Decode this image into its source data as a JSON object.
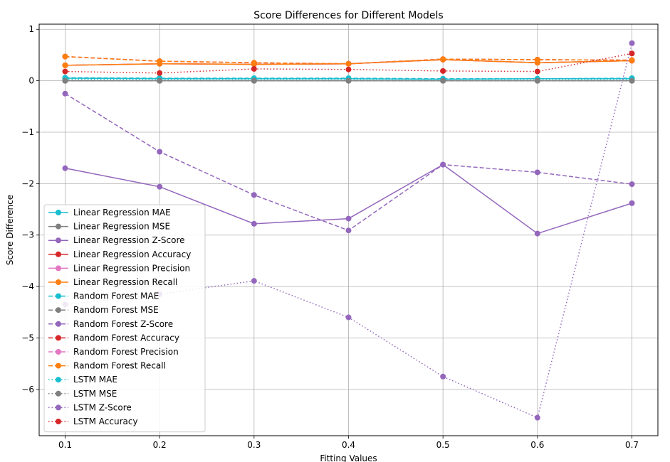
{
  "chart_data": {
    "type": "line",
    "title": "Score Differences for Different Models",
    "xlabel": "Fitting Values",
    "ylabel": "Score Difference",
    "x": [
      0.1,
      0.2,
      0.3,
      0.4,
      0.5,
      0.6,
      0.7
    ],
    "xticks": [
      "0.1",
      "0.2",
      "0.3",
      "0.4",
      "0.5",
      "0.6",
      "0.7"
    ],
    "yticks": [
      "1",
      "0",
      "−1",
      "−2",
      "−3",
      "−4",
      "−5",
      "−6"
    ],
    "ytick_values": [
      1,
      0,
      -1,
      -2,
      -3,
      -4,
      -5,
      -6
    ],
    "xlim": [
      0.0725,
      0.7275
    ],
    "ylim": [
      -6.9,
      1.1
    ],
    "grid": true,
    "legend_position": "lower-left",
    "series": [
      {
        "name": "Linear Regression MAE",
        "color": "#17becf",
        "style": "solid",
        "values": [
          0.05,
          0.04,
          0.04,
          0.04,
          0.03,
          0.04,
          0.04
        ]
      },
      {
        "name": "Linear Regression MSE",
        "color": "#7f7f7f",
        "style": "solid",
        "values": [
          0.0,
          0.0,
          0.0,
          0.0,
          0.0,
          0.0,
          0.0
        ]
      },
      {
        "name": "Linear Regression Z-Score",
        "color": "#9467bd",
        "style": "solid",
        "values": [
          -1.7,
          -2.06,
          -2.78,
          -2.68,
          -1.63,
          -2.97,
          -2.38
        ]
      },
      {
        "name": "Linear Regression Accuracy",
        "color": "#d62728",
        "style": "solid",
        "values": [
          0.3,
          0.33,
          0.32,
          0.33,
          0.41,
          0.35,
          0.39
        ]
      },
      {
        "name": "Linear Regression Precision",
        "color": "#e377c2",
        "style": "solid",
        "values": [
          0.3,
          0.33,
          0.32,
          0.33,
          0.41,
          0.35,
          0.39
        ]
      },
      {
        "name": "Linear Regression Recall",
        "color": "#ff7f0e",
        "style": "solid",
        "values": [
          0.3,
          0.33,
          0.32,
          0.33,
          0.41,
          0.35,
          0.39
        ]
      },
      {
        "name": "Random Forest MAE",
        "color": "#17becf",
        "style": "dashed",
        "values": [
          0.06,
          0.05,
          0.05,
          0.05,
          0.04,
          0.04,
          0.05
        ]
      },
      {
        "name": "Random Forest MSE",
        "color": "#7f7f7f",
        "style": "dashed",
        "values": [
          0.0,
          0.0,
          0.0,
          0.0,
          0.0,
          0.0,
          0.0
        ]
      },
      {
        "name": "Random Forest Z-Score",
        "color": "#9467bd",
        "style": "dashed",
        "values": [
          -0.25,
          -1.38,
          -2.22,
          -2.91,
          -1.63,
          -1.78,
          -2.01
        ]
      },
      {
        "name": "Random Forest Accuracy",
        "color": "#d62728",
        "style": "dashed",
        "values": [
          0.47,
          0.38,
          0.35,
          0.33,
          0.42,
          0.41,
          0.4
        ]
      },
      {
        "name": "Random Forest Precision",
        "color": "#e377c2",
        "style": "dashed",
        "values": [
          0.47,
          0.38,
          0.35,
          0.33,
          0.42,
          0.41,
          0.4
        ]
      },
      {
        "name": "Random Forest Recall",
        "color": "#ff7f0e",
        "style": "dashed",
        "values": [
          0.47,
          0.38,
          0.35,
          0.33,
          0.42,
          0.41,
          0.4
        ]
      },
      {
        "name": "LSTM MAE",
        "color": "#17becf",
        "style": "dotted",
        "values": [
          0.03,
          0.03,
          0.03,
          0.03,
          0.03,
          0.03,
          0.03
        ]
      },
      {
        "name": "LSTM MSE",
        "color": "#7f7f7f",
        "style": "dotted",
        "values": [
          0.0,
          0.0,
          0.0,
          0.0,
          0.0,
          0.0,
          0.0
        ]
      },
      {
        "name": "LSTM Z-Score",
        "color": "#9467bd",
        "style": "dotted",
        "values": [
          -4.35,
          -4.15,
          -3.89,
          -4.6,
          -5.75,
          -6.55,
          0.73
        ]
      },
      {
        "name": "LSTM Accuracy",
        "color": "#d62728",
        "style": "dotted",
        "values": [
          0.18,
          0.15,
          0.23,
          0.22,
          0.19,
          0.18,
          0.53
        ]
      }
    ]
  }
}
